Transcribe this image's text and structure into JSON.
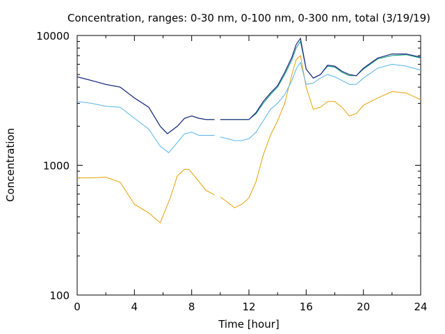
{
  "chart_data": {
    "type": "line",
    "title": "Concentration, ranges: 0-30 nm, 0-100 nm, 0-300 nm, total (3/19/19)",
    "xlabel": "Time [hour]",
    "ylabel": "Concentration",
    "xlim": [
      0,
      24
    ],
    "ylim": [
      100,
      10000
    ],
    "yscale": "log",
    "grid": false,
    "x_ticks": [
      0,
      4,
      8,
      12,
      16,
      20,
      24
    ],
    "x_tick_labels": [
      "0",
      "4",
      "8",
      "12",
      "16",
      "20",
      "24"
    ],
    "y_ticks": [
      100,
      1000,
      10000
    ],
    "y_tick_labels": [
      "100",
      "1000",
      "10000"
    ],
    "series": [
      {
        "color": "#e69f00",
        "x": [
          0,
          1,
          2,
          3,
          4,
          5,
          5.8,
          6.5,
          7,
          7.5,
          7.8,
          8.3,
          9,
          9.6
        ],
        "y": [
          800,
          800,
          810,
          740,
          500,
          430,
          360,
          560,
          830,
          930,
          930,
          800,
          640,
          590
        ],
        "x2": [
          10,
          10.5,
          11,
          11.5,
          12,
          12.5,
          13,
          13.5,
          14,
          14.5,
          15,
          15.3,
          15.6,
          16,
          16.5,
          17,
          17.5,
          18,
          18.5,
          19,
          19.5,
          20,
          21,
          22,
          23,
          24
        ],
        "y2": [
          570,
          520,
          470,
          500,
          560,
          750,
          1200,
          1700,
          2200,
          3000,
          5000,
          6500,
          7000,
          4000,
          2700,
          2800,
          3100,
          3100,
          2800,
          2400,
          2500,
          2900,
          3300,
          3700,
          3600,
          3200
        ]
      },
      {
        "color": "#56b4e9",
        "x": [
          0,
          1,
          2,
          3,
          4,
          5,
          5.8,
          6.4,
          7,
          7.5,
          8,
          8.5,
          9,
          9.6
        ],
        "y": [
          3100,
          3000,
          2850,
          2800,
          2300,
          1900,
          1400,
          1250,
          1500,
          1750,
          1800,
          1700,
          1700,
          1700
        ],
        "x2": [
          10,
          10.5,
          11,
          11.5,
          12,
          12.5,
          13,
          13.5,
          14,
          14.5,
          15,
          15.3,
          15.6,
          16,
          16.5,
          17,
          17.5,
          18,
          18.5,
          19,
          19.5,
          20,
          21,
          22,
          23,
          24
        ],
        "y2": [
          1650,
          1600,
          1550,
          1550,
          1600,
          1800,
          2200,
          2700,
          3000,
          3500,
          4500,
          5500,
          6200,
          4200,
          4300,
          4700,
          5000,
          4800,
          4500,
          4200,
          4200,
          4700,
          5600,
          6000,
          5800,
          5400
        ]
      },
      {
        "color": "#009e73",
        "x": [
          0,
          1,
          2,
          3,
          4,
          5,
          5.8,
          6.3,
          7,
          7.5,
          8,
          8.5,
          9,
          9.6
        ],
        "y": [
          4800,
          4500,
          4200,
          4000,
          3300,
          2800,
          2000,
          1750,
          2000,
          2300,
          2400,
          2300,
          2250,
          2250
        ],
        "x2": [
          10,
          10.5,
          11,
          11.5,
          12,
          12.5,
          13,
          13.5,
          14,
          14.5,
          15,
          15.3,
          15.6,
          16,
          16.5,
          17,
          17.5,
          18,
          18.5,
          19,
          19.5,
          20,
          21,
          22,
          23,
          24
        ],
        "y2": [
          2250,
          2250,
          2250,
          2250,
          2250,
          2500,
          3000,
          3500,
          4000,
          5000,
          6500,
          8000,
          9000,
          5500,
          4700,
          5000,
          5800,
          5700,
          5200,
          4900,
          4900,
          5500,
          6600,
          7000,
          7100,
          6700
        ]
      },
      {
        "color": "#1a237e",
        "x": [
          0,
          1,
          2,
          3,
          4,
          5,
          5.8,
          6.3,
          7,
          7.5,
          8,
          8.5,
          9,
          9.6
        ],
        "y": [
          4800,
          4500,
          4200,
          4000,
          3300,
          2800,
          2000,
          1750,
          2000,
          2300,
          2400,
          2300,
          2250,
          2250
        ],
        "x2": [
          10,
          10.5,
          11,
          11.5,
          12,
          12.5,
          13,
          13.5,
          14,
          14.5,
          15,
          15.3,
          15.6,
          16,
          16.5,
          17,
          17.5,
          18,
          18.5,
          19,
          19.5,
          20,
          21,
          22,
          23,
          24
        ],
        "y2": [
          2250,
          2250,
          2250,
          2250,
          2250,
          2550,
          3100,
          3600,
          4100,
          5200,
          6800,
          8500,
          9500,
          5500,
          4700,
          5000,
          5900,
          5800,
          5300,
          5000,
          4900,
          5600,
          6700,
          7200,
          7200,
          6800
        ]
      }
    ]
  }
}
